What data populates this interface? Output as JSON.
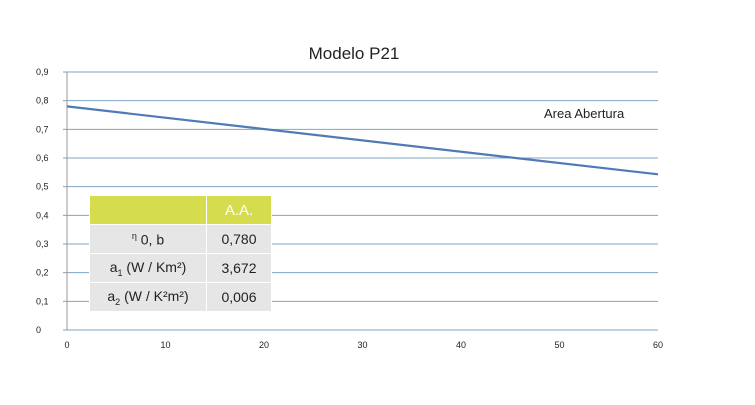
{
  "chart_data": {
    "type": "line",
    "title": "Modelo P21",
    "x": [
      0,
      60
    ],
    "series": [
      {
        "name": "Area Abertura",
        "values": [
          0.78,
          0.543
        ],
        "color": "#4f7ab5"
      }
    ],
    "xticks": [
      "0",
      "10",
      "20",
      "30",
      "40",
      "50",
      "60"
    ],
    "yticks": [
      "0",
      "0,1",
      "0,2",
      "0,3",
      "0,4",
      "0,5",
      "0,6",
      "0,7",
      "0,8",
      "0,9"
    ],
    "xlim": [
      0,
      60
    ],
    "ylim": [
      0,
      0.9
    ],
    "grid": "horizontal",
    "gridline_color": "#7fa4c8",
    "xlabel": "",
    "ylabel": ""
  },
  "table": {
    "header": [
      "",
      "A.A."
    ],
    "header_color": "#d5dd4f",
    "rows": [
      {
        "symbol": "η",
        "subscript": "0, b",
        "value": "0,780"
      },
      {
        "symbol": "a",
        "subscript": "1",
        "unit": "(W / Km²)",
        "value": "3,672"
      },
      {
        "symbol": "a",
        "subscript": "2",
        "unit": "(W / K²m²)",
        "value": "0,006"
      }
    ]
  }
}
